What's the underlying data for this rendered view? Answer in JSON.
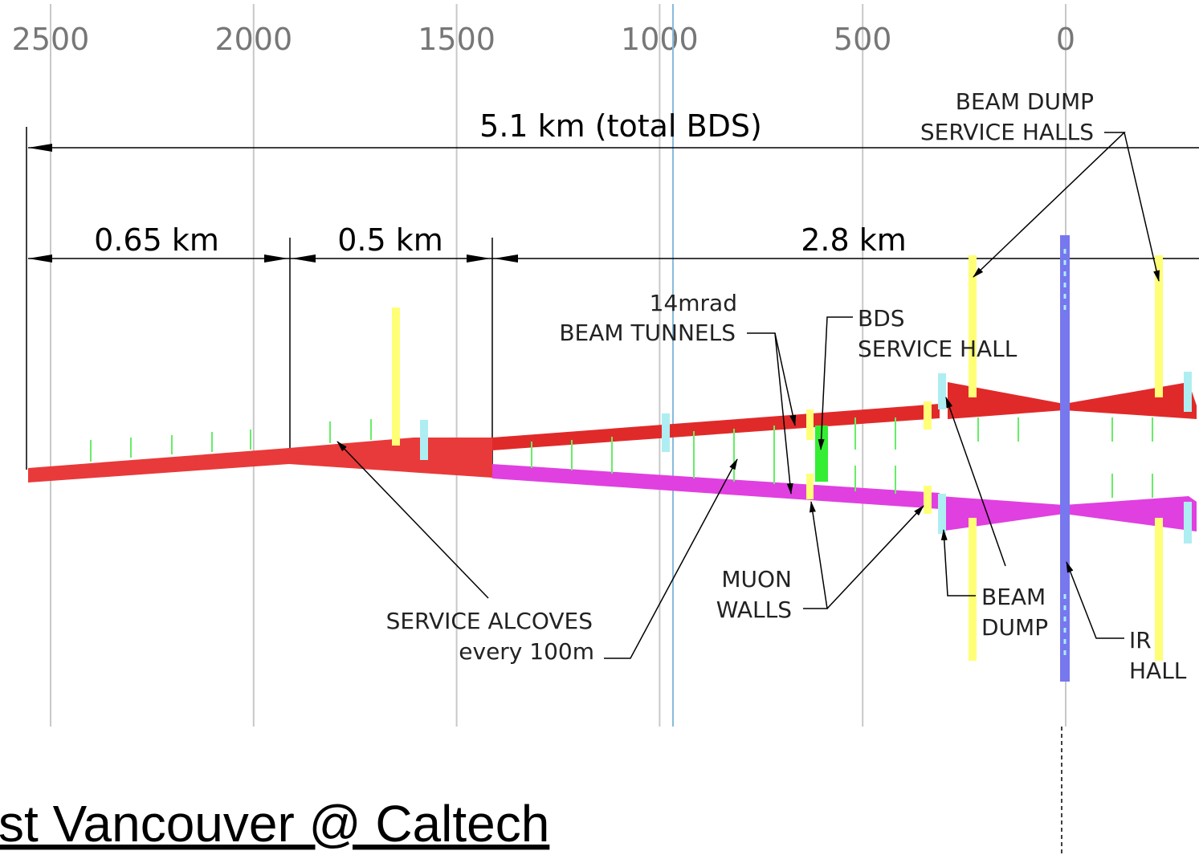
{
  "scale": {
    "ticks": [
      2500,
      2000,
      1500,
      1000,
      500,
      0
    ]
  },
  "dimensions": {
    "total": "5.1 km (total BDS)",
    "first": "0.65 km",
    "second": "0.5 km",
    "third": "2.8 km"
  },
  "labels": {
    "beam_dump_service_halls": [
      "BEAM DUMP",
      "SERVICE HALLS"
    ],
    "beam_tunnels": [
      "14mrad",
      "BEAM TUNNELS"
    ],
    "bds_service_hall": [
      "BDS",
      "SERVICE HALL"
    ],
    "muon_walls": [
      "MUON",
      "WALLS"
    ],
    "service_alcoves": [
      "SERVICE ALCOVES",
      "every 100m"
    ],
    "beam_dump": [
      "BEAM",
      "DUMP"
    ],
    "ir_hall": [
      "IR",
      "HALL"
    ]
  },
  "footer": "st Vancouver @ Caltech"
}
